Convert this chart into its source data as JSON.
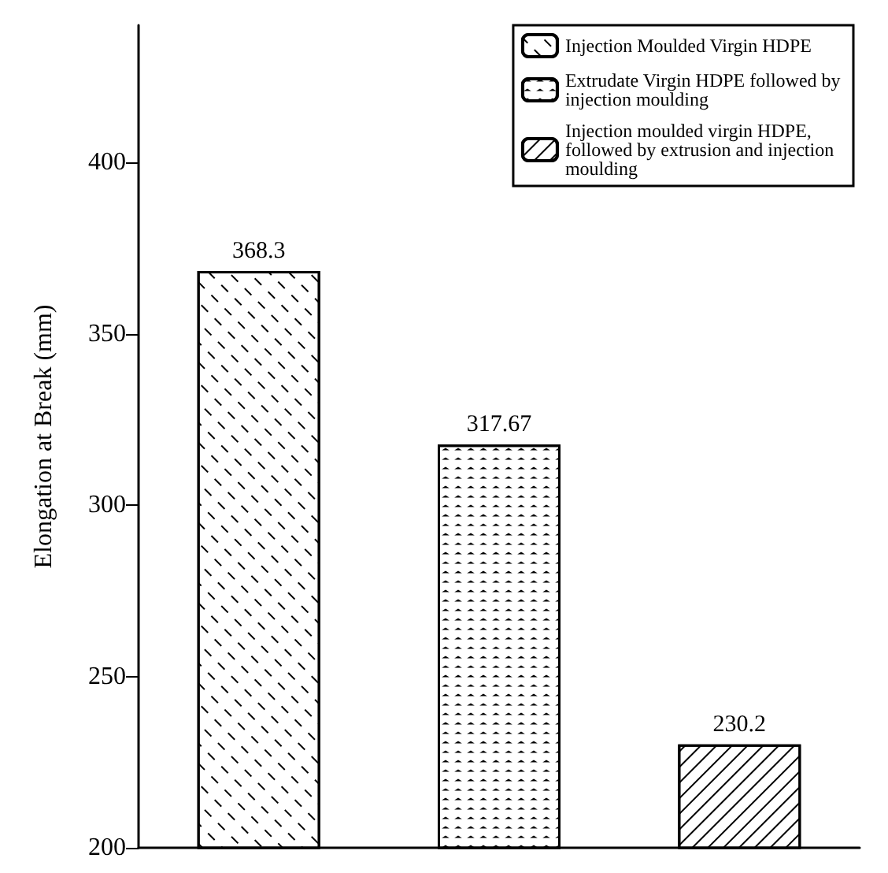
{
  "chart_data": {
    "type": "bar",
    "ylabel": "Elongation at Break (mm)",
    "categories": [
      null,
      null,
      null
    ],
    "series": [
      {
        "name": "Injection Moulded Virgin HDPE",
        "color": "#ffffff",
        "values": [
          368.3,
          null,
          null
        ]
      },
      {
        "name": "Extrudate Virgin HDPE followed by injection moulding",
        "color": "#ffffff",
        "values": [
          null,
          317.67,
          null
        ]
      },
      {
        "name": "Injection moulded virgin HDPE, followed by extrusion and injection moulding",
        "color": "#ffffff",
        "values": [
          null,
          null,
          230.2
        ]
      }
    ],
    "ylim": [
      200,
      440
    ],
    "yticks": [
      200,
      250,
      300,
      350,
      400
    ],
    "data_labels": true,
    "grid": false,
    "legend": "top right"
  }
}
